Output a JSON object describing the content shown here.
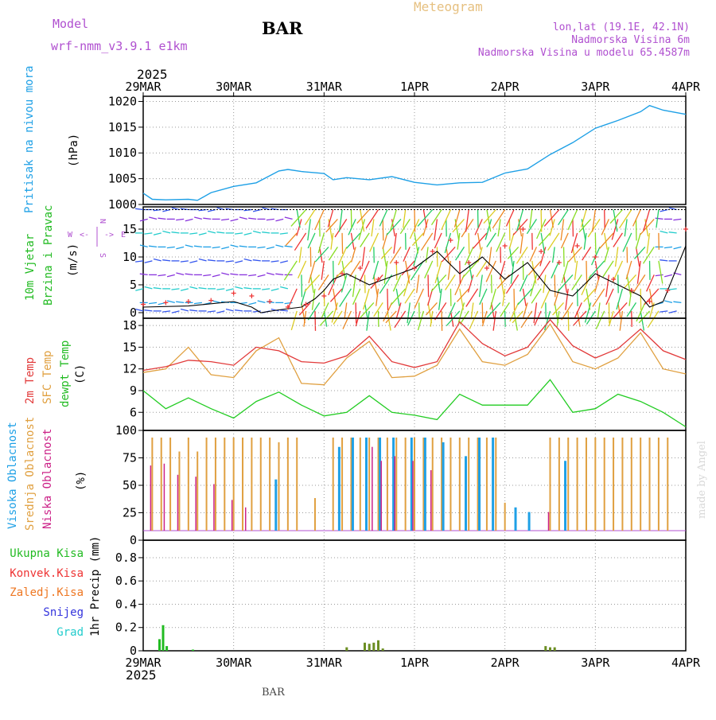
{
  "header": {
    "model_label": "Model",
    "model_name": "wrf-nmm_v3.9.1  e1km",
    "station": "BAR",
    "meteogram": "Meteogram",
    "coords": "lon,lat (19.1E, 42.1N)",
    "altitude": "Nadmorska Visina 6m",
    "model_altitude": "Nadmorska Visina u modelu 65.4587m",
    "year_top": "2025",
    "year_bottom": "2025",
    "footer": "BAR",
    "credit": "made by Angel"
  },
  "colors": {
    "pressure": "#1ea0e6",
    "t2m": "#e23a3a",
    "sfc": "#e0a040",
    "dewpt": "#22cc22",
    "cloud_high": "#1ea0e6",
    "cloud_mid": "#e0a040",
    "cloud_low": "#cc2288",
    "precip_total": "#22bb22",
    "precip_conv": "#ee3333",
    "precip_frz": "#ee7722",
    "snow": "#3333dd",
    "graupel": "#22cccc",
    "model": "#b050d0",
    "meteogram": "#e6c080"
  },
  "chart_data": [
    {
      "type": "line",
      "panel": "pressure",
      "ylabel": [
        "Pritisak na nivou mora",
        "(hPa)"
      ],
      "x_ticks": [
        "29MAR",
        "30MAR",
        "31MAR",
        "1APR",
        "2APR",
        "3APR",
        "4APR"
      ],
      "y_ticks": [
        "1020",
        "1015",
        "1010",
        "1005",
        "1000"
      ],
      "ylim": [
        1000,
        1021
      ],
      "grid": true,
      "series": [
        {
          "key": "slp",
          "x": [
            0,
            0.1,
            0.25,
            0.5,
            0.6,
            0.75,
            1.0,
            1.25,
            1.5,
            1.6,
            1.75,
            2.0,
            2.1,
            2.25,
            2.5,
            2.75,
            3.0,
            3.25,
            3.5,
            3.75,
            4.0,
            4.25,
            4.5,
            4.75,
            5.0,
            5.25,
            5.5,
            5.6,
            5.75,
            6.0
          ],
          "values": [
            1002.2,
            1001.0,
            1000.9,
            1001.0,
            1000.8,
            1002.3,
            1003.5,
            1004.2,
            1006.5,
            1006.8,
            1006.4,
            1006.0,
            1004.8,
            1005.2,
            1004.8,
            1005.4,
            1004.3,
            1003.8,
            1004.2,
            1004.3,
            1006.1,
            1006.9,
            1009.7,
            1012.0,
            1014.8,
            1016.3,
            1018.0,
            1019.2,
            1018.3,
            1017.5
          ]
        }
      ]
    },
    {
      "type": "line",
      "panel": "wind",
      "ylabel": [
        "10m Vjetar",
        "Brzina i Pravac",
        "(m/s)"
      ],
      "compass": [
        "N",
        "S",
        "W",
        "E",
        "<-",
        "->"
      ],
      "y_ticks": [
        "15",
        "10",
        "5",
        "0"
      ],
      "ylim": [
        -1,
        19
      ],
      "grid": true,
      "series": [
        {
          "key": "speed",
          "x": [
            0,
            0.5,
            1.0,
            1.2,
            1.3,
            1.5,
            1.75,
            1.9,
            2.0,
            2.1,
            2.25,
            2.5,
            2.75,
            3.0,
            3.25,
            3.5,
            3.75,
            4.0,
            4.25,
            4.5,
            4.75,
            5.0,
            5.25,
            5.5,
            5.6,
            5.75,
            6.0
          ],
          "values": [
            1.0,
            1.2,
            2.0,
            1.0,
            0.0,
            0.5,
            1.0,
            2.5,
            4.0,
            6.0,
            7.0,
            5.0,
            6.5,
            8.0,
            11.0,
            7.0,
            10.0,
            6.0,
            9.0,
            4.0,
            3.0,
            7.0,
            5.0,
            3.0,
            1.0,
            2.0,
            12.0
          ]
        },
        {
          "key": "gust",
          "x": [
            0,
            0.25,
            0.5,
            0.75,
            1.0,
            1.2,
            1.4,
            1.6,
            1.8,
            2.0,
            2.2,
            2.4,
            2.6,
            2.8,
            3.0,
            3.2,
            3.4,
            3.6,
            3.8,
            4.0,
            4.2,
            4.4,
            4.6,
            4.8,
            5.0,
            5.2,
            5.4,
            5.6,
            5.8,
            6.0
          ],
          "values": [
            1.5,
            1.8,
            2.0,
            2.2,
            3.5,
            3.0,
            2.0,
            1.0,
            1.5,
            3.0,
            7.0,
            8.0,
            6.0,
            9.0,
            8.0,
            11.0,
            13.0,
            9.0,
            8.0,
            12.0,
            15.0,
            11.0,
            9.0,
            12.0,
            10.0,
            6.0,
            4.0,
            2.0,
            4.0,
            15.0
          ]
        }
      ]
    },
    {
      "type": "line",
      "panel": "temperature",
      "ylabel": [
        "2m Temp",
        "SFC Temp",
        "dewpt Temp",
        "(C)"
      ],
      "y_ticks": [
        "18",
        "15",
        "12",
        "9",
        "6"
      ],
      "ylim": [
        3.5,
        19
      ],
      "grid": true,
      "series": [
        {
          "key": "t2m",
          "x": [
            0,
            0.25,
            0.5,
            0.75,
            1.0,
            1.25,
            1.5,
            1.75,
            2.0,
            2.25,
            2.5,
            2.75,
            3.0,
            3.25,
            3.5,
            3.75,
            4.0,
            4.25,
            4.5,
            4.75,
            5.0,
            5.25,
            5.5,
            5.75,
            6.0
          ],
          "values": [
            11.8,
            12.3,
            13.2,
            13.0,
            12.5,
            15.0,
            14.5,
            13.0,
            12.8,
            13.8,
            16.5,
            13.0,
            12.2,
            13.0,
            18.5,
            15.5,
            13.8,
            15.0,
            18.8,
            15.2,
            13.5,
            14.8,
            17.5,
            14.5,
            13.3
          ]
        },
        {
          "key": "sfc",
          "x": [
            0,
            0.25,
            0.5,
            0.75,
            1.0,
            1.25,
            1.5,
            1.75,
            2.0,
            2.25,
            2.5,
            2.75,
            3.0,
            3.25,
            3.5,
            3.75,
            4.0,
            4.25,
            4.5,
            4.75,
            5.0,
            5.25,
            5.5,
            5.75,
            6.0
          ],
          "values": [
            11.5,
            12.0,
            15.0,
            11.2,
            10.8,
            14.5,
            16.3,
            10.0,
            9.8,
            13.5,
            15.8,
            10.8,
            11.0,
            12.5,
            17.5,
            13.0,
            12.5,
            14.0,
            18.2,
            13.0,
            12.0,
            13.5,
            17.0,
            12.0,
            11.3
          ]
        },
        {
          "key": "dewpt",
          "x": [
            0,
            0.25,
            0.5,
            0.75,
            1.0,
            1.25,
            1.5,
            1.75,
            2.0,
            2.25,
            2.5,
            2.75,
            3.0,
            3.25,
            3.5,
            3.75,
            4.0,
            4.25,
            4.5,
            4.75,
            5.0,
            5.25,
            5.5,
            5.75,
            6.0
          ],
          "values": [
            9.0,
            6.5,
            8.0,
            6.5,
            5.2,
            7.5,
            8.8,
            7.0,
            5.5,
            6.0,
            8.3,
            6.0,
            5.6,
            5.0,
            8.5,
            7.0,
            7.0,
            7.0,
            10.5,
            6.0,
            6.5,
            8.5,
            7.5,
            6.0,
            4.0
          ]
        }
      ]
    },
    {
      "type": "bar",
      "panel": "clouds",
      "ylabel": [
        "Visoka Oblacnost",
        "Srednja Oblacnost",
        "Niska Oblacnost",
        "(%)"
      ],
      "y_ticks": [
        "100",
        "75",
        "50",
        "25",
        "0"
      ],
      "ylim": [
        0,
        100
      ],
      "grid": true,
      "series": [
        {
          "key": "mid",
          "x": [
            0.1,
            0.2,
            0.3,
            0.4,
            0.5,
            0.6,
            0.7,
            0.8,
            0.9,
            1.0,
            1.1,
            1.2,
            1.3,
            1.4,
            1.5,
            1.6,
            1.7,
            1.9,
            2.1,
            2.2,
            2.3,
            2.4,
            2.5,
            2.6,
            2.7,
            2.8,
            2.9,
            3.0,
            3.1,
            3.2,
            3.3,
            3.4,
            3.5,
            3.6,
            3.7,
            3.8,
            3.9,
            4.0,
            4.5,
            4.6,
            4.7,
            4.8,
            4.9,
            5.0,
            5.1,
            5.2,
            5.3,
            5.4,
            5.5,
            5.6,
            5.7,
            5.8
          ],
          "values": [
            100,
            100,
            100,
            85,
            100,
            85,
            100,
            100,
            100,
            100,
            100,
            100,
            100,
            100,
            95,
            100,
            100,
            35,
            100,
            100,
            100,
            100,
            100,
            100,
            100,
            100,
            100,
            100,
            100,
            100,
            100,
            100,
            100,
            100,
            100,
            100,
            100,
            30,
            100,
            100,
            100,
            100,
            100,
            100,
            100,
            100,
            100,
            100,
            100,
            100,
            100,
            100
          ]
        },
        {
          "key": "high",
          "x": [
            1.45,
            2.15,
            2.3,
            2.45,
            2.6,
            2.75,
            2.95,
            3.1,
            3.3,
            3.55,
            3.7,
            3.85,
            4.1,
            4.25,
            4.65
          ],
          "values": [
            55,
            90,
            100,
            100,
            100,
            100,
            100,
            100,
            95,
            80,
            100,
            100,
            25,
            20,
            75
          ]
        },
        {
          "key": "low",
          "x": [
            0.1,
            0.25,
            0.4,
            0.6,
            0.8,
            1.0,
            1.15,
            2.55,
            2.65,
            2.8,
            3.0,
            3.2,
            4.5
          ],
          "values": [
            70,
            72,
            60,
            58,
            50,
            33,
            25,
            90,
            75,
            80,
            75,
            65,
            20
          ]
        }
      ]
    },
    {
      "type": "bar",
      "panel": "precip",
      "ylabel": [
        "1hr Precip (mm)"
      ],
      "legend": [
        "Ukupna Kisa",
        "Konvek.Kisa",
        "Zaledj.Kisa",
        "Snijeg",
        "Grad"
      ],
      "y_ticks": [
        "0.8",
        "0.6",
        "0.4",
        "0.2",
        "0"
      ],
      "x_ticks": [
        "29MAR",
        "30MAR",
        "31MAR",
        "1APR",
        "2APR",
        "3APR",
        "4APR"
      ],
      "ylim": [
        0,
        0.95
      ],
      "grid": true,
      "series": [
        {
          "key": "total",
          "x": [
            0.18,
            0.22,
            0.26,
            0.55,
            2.25,
            2.45,
            2.5,
            2.55,
            2.6,
            2.65,
            4.45,
            4.5,
            4.55
          ],
          "values": [
            0.1,
            0.22,
            0.04,
            0.01,
            0.03,
            0.07,
            0.06,
            0.07,
            0.09,
            0.02,
            0.04,
            0.03,
            0.03
          ]
        }
      ]
    }
  ]
}
